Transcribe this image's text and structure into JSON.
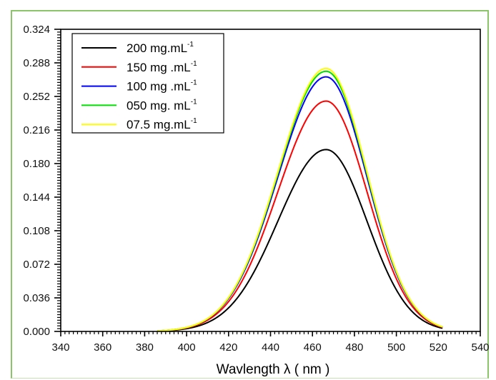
{
  "chart_data": {
    "type": "line",
    "title": "",
    "xlabel": "Wavlength λ ( nm )",
    "ylabel": "",
    "xlim": [
      340,
      540
    ],
    "ylim": [
      0,
      0.324
    ],
    "x_ticks": [
      "340",
      "360",
      "380",
      "400",
      "420",
      "440",
      "460",
      "480",
      "500",
      "520",
      "540"
    ],
    "y_ticks": [
      "0.000",
      "0.036",
      "0.072",
      "0.108",
      "0.144",
      "0.180",
      "0.216",
      "0.252",
      "0.288",
      "0.324"
    ],
    "x_minor_step": 2,
    "y_minor_step": 0.003,
    "grid": false,
    "legend_position": "top-left",
    "peak_wavelength": 466.5,
    "x_range_of_curves": [
      386,
      522
    ],
    "series": [
      {
        "name": "200 mg.mL",
        "sup": "-1",
        "color": "#000000",
        "peak": 0.195
      },
      {
        "name": "150 mg .mL",
        "sup": "-1",
        "color": "#ff0000",
        "peak": 0.247
      },
      {
        "name": "100 mg .mL",
        "sup": "-1",
        "color": "#0000ff",
        "peak": 0.273
      },
      {
        "name": "050 mg. mL",
        "sup": "-1",
        "color": "#00e000",
        "peak": 0.279
      },
      {
        "name": " 07.5 mg.mL",
        "sup": "-1",
        "color": "#ffff00",
        "peak": 0.282
      }
    ]
  }
}
